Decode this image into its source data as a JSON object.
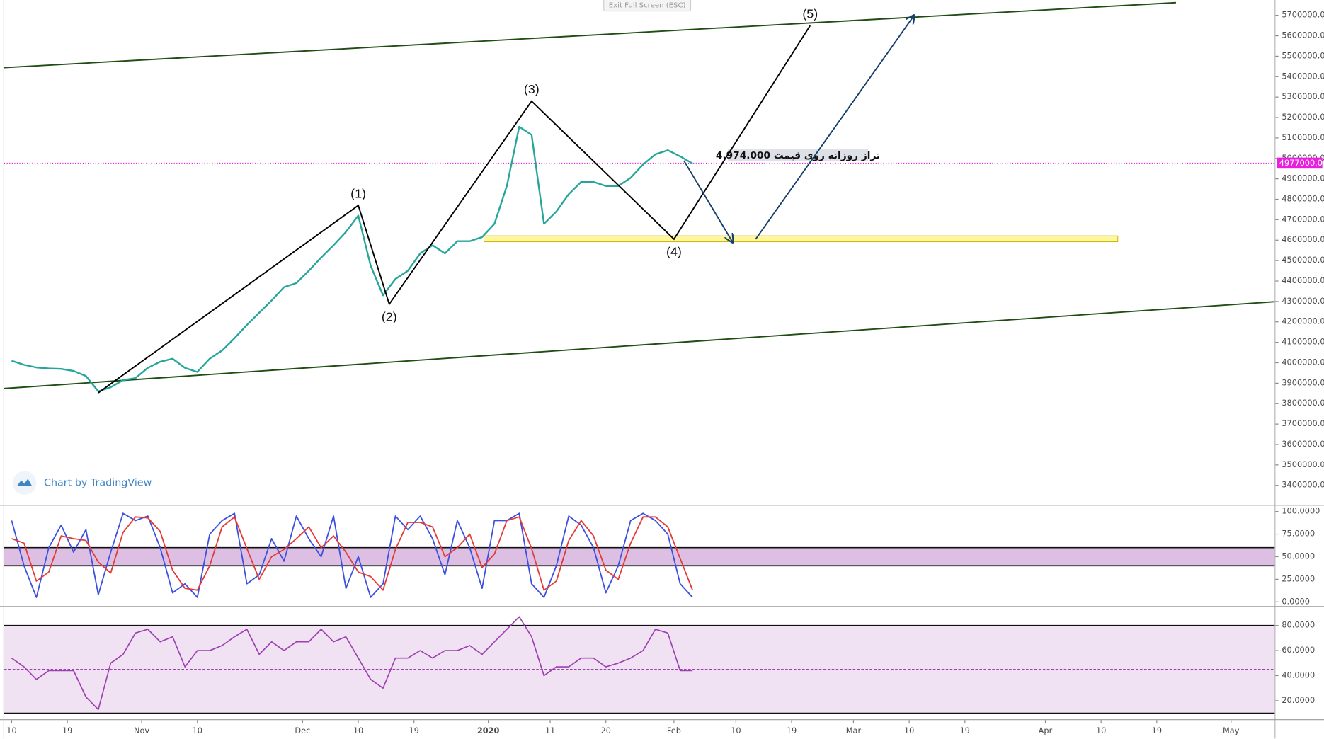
{
  "ui": {
    "exit_button": "Exit Full Screen (ESC)",
    "watermark": "Chart by TradingView"
  },
  "chart_data": [
    {
      "type": "line",
      "color": "#26a69a",
      "x": [
        0,
        2,
        4,
        6,
        8,
        10,
        12,
        14,
        16,
        18,
        20,
        22,
        24,
        26,
        28,
        30,
        32,
        34,
        36,
        38,
        40,
        42,
        44,
        46,
        48,
        50,
        52,
        54,
        56,
        58,
        60,
        62,
        64,
        66,
        68,
        70,
        72,
        74,
        76,
        78,
        80,
        82,
        84,
        86,
        88,
        90,
        92,
        94,
        96,
        98,
        100,
        102,
        104,
        106,
        108,
        110
      ],
      "values": [
        4010000,
        3990000,
        3977000,
        3972000,
        3970000,
        3960000,
        3935000,
        3860000,
        3880000,
        3915000,
        3925000,
        3975000,
        4005000,
        4020000,
        3975000,
        3955000,
        4020000,
        4060000,
        4120000,
        4185000,
        4245000,
        4305000,
        4370000,
        4390000,
        4450000,
        4515000,
        4575000,
        4640000,
        4720000,
        4475000,
        4330000,
        4410000,
        4450000,
        4535000,
        4575000,
        4535000,
        4595000,
        4595000,
        4615000,
        4680000,
        4865000,
        5155000,
        5115000,
        4680000,
        4740000,
        4825000,
        4885000,
        4885000,
        4865000,
        4865000,
        4905000,
        4970000,
        5020000,
        5040000,
        5010000,
        4975000
      ],
      "xlim": [
        -1.2,
        204.1
      ],
      "ylim": [
        3305000,
        5775000
      ],
      "yticks": [
        {
          "value": 3400000,
          "label": "3400000.0"
        },
        {
          "value": 3500000,
          "label": "3500000.0"
        },
        {
          "value": 3600000,
          "label": "3600000.0"
        },
        {
          "value": 3700000,
          "label": "3700000.0"
        },
        {
          "value": 3800000,
          "label": "3800000.0"
        },
        {
          "value": 3900000,
          "label": "3900000.0"
        },
        {
          "value": 4000000,
          "label": "4000000.0"
        },
        {
          "value": 4100000,
          "label": "4100000.0"
        },
        {
          "value": 4200000,
          "label": "4200000.0"
        },
        {
          "value": 4300000,
          "label": "4300000.0"
        },
        {
          "value": 4400000,
          "label": "4400000.0"
        },
        {
          "value": 4500000,
          "label": "4500000.0"
        },
        {
          "value": 4600000,
          "label": "4600000.0"
        },
        {
          "value": 4700000,
          "label": "4700000.0"
        },
        {
          "value": 4800000,
          "label": "4800000.0"
        },
        {
          "value": 4900000,
          "label": "4900000.0"
        },
        {
          "value": 5000000,
          "label": "5000000.0"
        },
        {
          "value": 5100000,
          "label": "5100000.0"
        },
        {
          "value": 5200000,
          "label": "5200000.0"
        },
        {
          "value": 5300000,
          "label": "5300000.0"
        },
        {
          "value": 5400000,
          "label": "5400000.0"
        },
        {
          "value": 5500000,
          "label": "5500000.0"
        },
        {
          "value": 5600000,
          "label": "5600000.0"
        },
        {
          "value": 5700000,
          "label": "5700000.0"
        }
      ],
      "last_price": {
        "value": 4977000,
        "label": "4977000.0",
        "color": "#e91ee0"
      },
      "trendlines": [
        {
          "color": "#1f4d14",
          "x": [
            -1.2,
            188.1
          ],
          "y": [
            5444000,
            5762000
          ]
        },
        {
          "color": "#1f4d14",
          "x": [
            -1.2,
            204.1
          ],
          "y": [
            3874000,
            4299000
          ]
        }
      ],
      "wave": {
        "color": "#000000",
        "x": [
          14,
          56,
          61,
          84,
          107,
          129
        ],
        "y": [
          3853000,
          4770000,
          4287000,
          5280000,
          4605000,
          5650000
        ],
        "labels": [
          null,
          "(1)",
          "(2)",
          "(3)",
          "(4)",
          "(5)"
        ]
      },
      "arrows": [
        {
          "color": "#17406b",
          "x": [
            108.6,
            116.5
          ],
          "y": [
            4989000,
            4589000
          ]
        },
        {
          "color": "#17406b",
          "x": [
            120.2,
            145.8
          ],
          "y": [
            4605000,
            5700000
          ]
        }
      ],
      "zone": {
        "color": "#fff59d",
        "x": [
          76.3,
          178.7
        ],
        "y": [
          4592000,
          4621000
        ]
      },
      "note": "تراز روزانه روی قیمت 4.974.000"
    },
    {
      "type": "line",
      "x": [
        0,
        2,
        4,
        6,
        8,
        10,
        12,
        14,
        16,
        18,
        20,
        22,
        24,
        26,
        28,
        30,
        32,
        34,
        36,
        38,
        40,
        42,
        44,
        46,
        48,
        50,
        52,
        54,
        56,
        58,
        60,
        62,
        64,
        66,
        68,
        70,
        72,
        74,
        76,
        78,
        80,
        82,
        84,
        86,
        88,
        90,
        92,
        94,
        96,
        98,
        100,
        102,
        104,
        106,
        108,
        110
      ],
      "series": [
        {
          "color": "#3b4fe0",
          "values": [
            90,
            40,
            5,
            60,
            85,
            55,
            80,
            8,
            55,
            98,
            90,
            95,
            60,
            10,
            20,
            5,
            75,
            90,
            98,
            20,
            30,
            70,
            45,
            95,
            70,
            50,
            95,
            15,
            50,
            5,
            20,
            95,
            80,
            95,
            70,
            30,
            90,
            60,
            15,
            90,
            90,
            98,
            20,
            5,
            40,
            95,
            85,
            60,
            10,
            40,
            90,
            98,
            90,
            75,
            20,
            5
          ]
        },
        {
          "color": "#e53935",
          "values": [
            70,
            65,
            23,
            33,
            73,
            70,
            68,
            44,
            32,
            77,
            94,
            93,
            78,
            35,
            15,
            13,
            40,
            83,
            94,
            59,
            25,
            50,
            58,
            70,
            83,
            60,
            73,
            55,
            33,
            28,
            13,
            58,
            88,
            88,
            83,
            50,
            60,
            75,
            38,
            53,
            90,
            94,
            59,
            13,
            23,
            68,
            90,
            73,
            35,
            25,
            65,
            94,
            94,
            83,
            48,
            13
          ]
        }
      ],
      "xlim": [
        -1.2,
        204.1
      ],
      "ylim": [
        -4.7,
        106.5
      ],
      "yticks": [
        {
          "value": 0,
          "label": "0.0000"
        },
        {
          "value": 25,
          "label": "25.0000"
        },
        {
          "value": 50,
          "label": "50.0000"
        },
        {
          "value": 75,
          "label": "75.0000"
        },
        {
          "value": 100,
          "label": "100.0000"
        }
      ],
      "band": [
        40,
        60
      ],
      "band_color": "#dcbfe3"
    },
    {
      "type": "line",
      "color": "#9c3fb0",
      "x": [
        0,
        2,
        4,
        6,
        8,
        10,
        12,
        14,
        16,
        18,
        20,
        22,
        24,
        26,
        28,
        30,
        32,
        34,
        36,
        38,
        40,
        42,
        44,
        46,
        48,
        50,
        52,
        54,
        56,
        58,
        60,
        62,
        64,
        66,
        68,
        70,
        72,
        74,
        76,
        78,
        80,
        82,
        84,
        86,
        88,
        90,
        92,
        94,
        96,
        98,
        100,
        102,
        104,
        106,
        108,
        110
      ],
      "values": [
        54,
        47,
        37,
        44,
        44,
        44,
        23,
        13,
        50,
        57,
        74,
        77,
        67,
        71,
        47,
        60,
        60,
        64,
        71,
        77,
        57,
        67,
        60,
        67,
        67,
        77,
        67,
        71,
        54,
        37,
        30,
        54,
        54,
        60,
        54,
        60,
        60,
        64,
        57,
        67,
        77,
        87,
        71,
        40,
        47,
        47,
        54,
        54,
        47,
        50,
        54,
        60,
        77,
        74,
        44,
        44
      ],
      "xlim": [
        -1.2,
        204.1
      ],
      "ylim": [
        5.2,
        94.8
      ],
      "yticks": [
        {
          "value": 20,
          "label": "20.0000"
        },
        {
          "value": 40,
          "label": "40.0000"
        },
        {
          "value": 60,
          "label": "60.0000"
        },
        {
          "value": 80,
          "label": "80.0000"
        }
      ],
      "band": [
        10,
        80
      ],
      "band_color": "#f1e2f3",
      "midline": 45,
      "xticks": [
        {
          "value": 0,
          "label": "10"
        },
        {
          "value": 9,
          "label": "19"
        },
        {
          "value": 21,
          "label": "Nov"
        },
        {
          "value": 30,
          "label": "10"
        },
        {
          "value": 47,
          "label": "Dec"
        },
        {
          "value": 56,
          "label": "10"
        },
        {
          "value": 65,
          "label": "19"
        },
        {
          "value": 77,
          "label": "2020"
        },
        {
          "value": 87,
          "label": "11"
        },
        {
          "value": 96,
          "label": "20"
        },
        {
          "value": 107,
          "label": "Feb"
        },
        {
          "value": 117,
          "label": "10"
        },
        {
          "value": 126,
          "label": "19"
        },
        {
          "value": 136,
          "label": "Mar"
        },
        {
          "value": 145,
          "label": "10"
        },
        {
          "value": 154,
          "label": "19"
        },
        {
          "value": 167,
          "label": "Apr"
        },
        {
          "value": 176,
          "label": "10"
        },
        {
          "value": 185,
          "label": "19"
        },
        {
          "value": 197,
          "label": "May"
        }
      ]
    }
  ]
}
